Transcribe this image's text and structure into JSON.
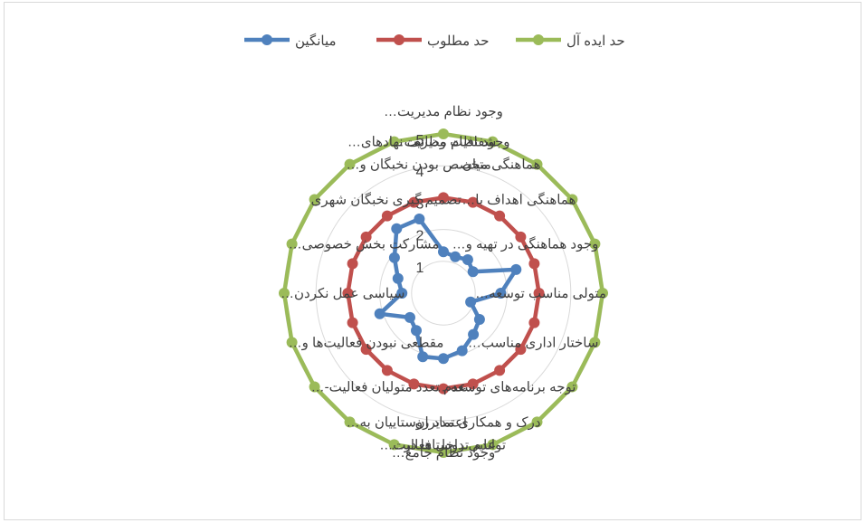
{
  "chart_data": {
    "type": "radar",
    "categories": [
      "وجود  نظام مدیریت…",
      "شفافیت وظائف نهادهای…",
      "هماهنگی میان…",
      "هماهنگی اهداف با…",
      "وجود هماهنگی در تهیه و…",
      "متولی مناسب توسعه…",
      "ساختار اداری مناسب…",
      "توجه برنامه‌های توسعه…",
      "درک و همکاری مدیران…",
      "عدم تداخل فعالیت…",
      "وجود نظام جامع…",
      "توانایی روستاها در…",
      "اعتماد روستاییان به…",
      "عدم تعدد متولیان فعالیت-…",
      "مقطعی نبودن فعالیت‌ها و…",
      "سیاسی عمل نکردن…",
      "مشارکت بخش خصوصی…",
      "تصمیم گیری نخبگان شهری",
      "متخصص بودن نخبگان و…",
      "وجود نظام مدیریت…"
    ],
    "series": [
      {
        "name": "میانگین",
        "color": "#4f81bd",
        "values": [
          1.3,
          1.2,
          1.3,
          1.15,
          2.4,
          1.8,
          0.9,
          1.4,
          1.6,
          1.9,
          2.05,
          2.1,
          1.45,
          1.3,
          2.1,
          1.3,
          1.5,
          1.9,
          2.5,
          2.45
        ]
      },
      {
        "name": "حد مطلوب",
        "color": "#c0504d",
        "values": [
          3,
          3,
          3,
          3,
          3,
          3,
          3,
          3,
          3,
          3,
          3,
          3,
          3,
          3,
          3,
          3,
          3,
          3,
          3,
          3
        ]
      },
      {
        "name": "حد ایده آل",
        "color": "#9bbb59",
        "values": [
          5,
          5,
          5,
          5,
          5,
          5,
          5,
          5,
          5,
          5,
          5,
          5,
          5,
          5,
          5,
          5,
          5,
          5,
          5,
          5
        ]
      }
    ],
    "rlim": [
      0,
      5
    ],
    "ticks": [
      "1",
      "2",
      "3",
      "4",
      "5"
    ],
    "grid": true,
    "legend_position": "top"
  }
}
